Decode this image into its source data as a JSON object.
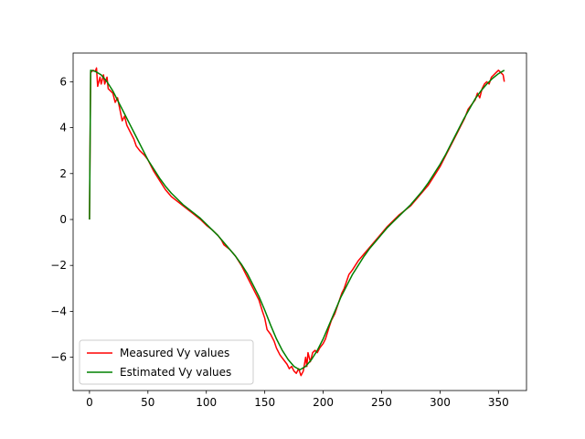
{
  "chart_data": {
    "type": "line",
    "title": "",
    "xlabel": "",
    "ylabel": "",
    "xlim": [
      -14,
      374
    ],
    "ylim": [
      -7.45,
      7.25
    ],
    "xticks": [
      0,
      50,
      100,
      150,
      200,
      250,
      300,
      350
    ],
    "yticks": [
      -6,
      -4,
      -2,
      0,
      2,
      4,
      6
    ],
    "grid": false,
    "legend_position": "lower-left",
    "series": [
      {
        "name": "Measured Vy values",
        "color": "#ff0000",
        "points": [
          [
            0,
            0
          ],
          [
            1,
            6.4
          ],
          [
            3,
            6.5
          ],
          [
            5,
            6.45
          ],
          [
            6,
            6.6
          ],
          [
            7,
            5.8
          ],
          [
            9,
            6.2
          ],
          [
            10,
            5.9
          ],
          [
            12,
            6.3
          ],
          [
            13,
            5.9
          ],
          [
            15,
            6.2
          ],
          [
            16,
            5.7
          ],
          [
            18,
            5.6
          ],
          [
            20,
            5.5
          ],
          [
            22,
            5.1
          ],
          [
            24,
            5.3
          ],
          [
            26,
            4.8
          ],
          [
            28,
            4.3
          ],
          [
            30,
            4.5
          ],
          [
            32,
            4.1
          ],
          [
            35,
            3.8
          ],
          [
            38,
            3.5
          ],
          [
            40,
            3.2
          ],
          [
            43,
            3.0
          ],
          [
            47,
            2.8
          ],
          [
            50,
            2.6
          ],
          [
            55,
            2.1
          ],
          [
            60,
            1.7
          ],
          [
            65,
            1.3
          ],
          [
            70,
            1.0
          ],
          [
            75,
            0.8
          ],
          [
            80,
            0.6
          ],
          [
            85,
            0.4
          ],
          [
            90,
            0.2
          ],
          [
            95,
            0.0
          ],
          [
            100,
            -0.25
          ],
          [
            105,
            -0.45
          ],
          [
            110,
            -0.7
          ],
          [
            113,
            -0.9
          ],
          [
            115,
            -1.1
          ],
          [
            120,
            -1.3
          ],
          [
            125,
            -1.6
          ],
          [
            130,
            -2.0
          ],
          [
            135,
            -2.5
          ],
          [
            140,
            -3.0
          ],
          [
            145,
            -3.5
          ],
          [
            148,
            -4.0
          ],
          [
            150,
            -4.3
          ],
          [
            152,
            -4.8
          ],
          [
            155,
            -5.0
          ],
          [
            158,
            -5.3
          ],
          [
            160,
            -5.6
          ],
          [
            163,
            -5.9
          ],
          [
            166,
            -6.1
          ],
          [
            169,
            -6.3
          ],
          [
            171,
            -6.5
          ],
          [
            173,
            -6.4
          ],
          [
            175,
            -6.6
          ],
          [
            177,
            -6.7
          ],
          [
            179,
            -6.5
          ],
          [
            181,
            -6.8
          ],
          [
            183,
            -6.6
          ],
          [
            185,
            -6.0
          ],
          [
            186,
            -6.4
          ],
          [
            187,
            -5.8
          ],
          [
            189,
            -6.2
          ],
          [
            191,
            -5.8
          ],
          [
            193,
            -5.7
          ],
          [
            195,
            -5.8
          ],
          [
            197,
            -5.6
          ],
          [
            200,
            -5.4
          ],
          [
            202,
            -5.2
          ],
          [
            205,
            -4.7
          ],
          [
            207,
            -4.4
          ],
          [
            210,
            -4.1
          ],
          [
            212,
            -3.8
          ],
          [
            214,
            -3.5
          ],
          [
            216,
            -3.2
          ],
          [
            218,
            -3.0
          ],
          [
            220,
            -2.7
          ],
          [
            222,
            -2.4
          ],
          [
            225,
            -2.2
          ],
          [
            230,
            -1.8
          ],
          [
            235,
            -1.5
          ],
          [
            240,
            -1.2
          ],
          [
            245,
            -0.9
          ],
          [
            250,
            -0.6
          ],
          [
            255,
            -0.3
          ],
          [
            260,
            -0.05
          ],
          [
            265,
            0.2
          ],
          [
            270,
            0.4
          ],
          [
            275,
            0.6
          ],
          [
            280,
            0.9
          ],
          [
            285,
            1.2
          ],
          [
            290,
            1.5
          ],
          [
            295,
            1.9
          ],
          [
            300,
            2.3
          ],
          [
            305,
            2.8
          ],
          [
            310,
            3.3
          ],
          [
            315,
            3.8
          ],
          [
            318,
            4.1
          ],
          [
            321,
            4.4
          ],
          [
            324,
            4.8
          ],
          [
            327,
            5.0
          ],
          [
            330,
            5.2
          ],
          [
            332,
            5.5
          ],
          [
            334,
            5.3
          ],
          [
            336,
            5.7
          ],
          [
            338,
            5.9
          ],
          [
            340,
            6.0
          ],
          [
            342,
            5.9
          ],
          [
            344,
            6.2
          ],
          [
            346,
            6.3
          ],
          [
            348,
            6.4
          ],
          [
            350,
            6.5
          ],
          [
            352,
            6.4
          ],
          [
            354,
            6.3
          ],
          [
            355,
            6.0
          ]
        ]
      },
      {
        "name": "Estimated Vy values",
        "color": "#008000",
        "points": [
          [
            0,
            0
          ],
          [
            1,
            6.5
          ],
          [
            5,
            6.45
          ],
          [
            10,
            6.3
          ],
          [
            15,
            6.0
          ],
          [
            20,
            5.6
          ],
          [
            25,
            5.1
          ],
          [
            30,
            4.6
          ],
          [
            35,
            4.1
          ],
          [
            40,
            3.6
          ],
          [
            45,
            3.1
          ],
          [
            50,
            2.6
          ],
          [
            55,
            2.2
          ],
          [
            60,
            1.8
          ],
          [
            65,
            1.45
          ],
          [
            70,
            1.15
          ],
          [
            75,
            0.9
          ],
          [
            80,
            0.65
          ],
          [
            85,
            0.45
          ],
          [
            90,
            0.25
          ],
          [
            95,
            0.05
          ],
          [
            100,
            -0.2
          ],
          [
            105,
            -0.45
          ],
          [
            110,
            -0.7
          ],
          [
            115,
            -1.0
          ],
          [
            120,
            -1.3
          ],
          [
            125,
            -1.6
          ],
          [
            130,
            -1.95
          ],
          [
            135,
            -2.35
          ],
          [
            140,
            -2.85
          ],
          [
            145,
            -3.35
          ],
          [
            150,
            -3.95
          ],
          [
            155,
            -4.6
          ],
          [
            160,
            -5.2
          ],
          [
            165,
            -5.7
          ],
          [
            170,
            -6.1
          ],
          [
            175,
            -6.4
          ],
          [
            180,
            -6.55
          ],
          [
            185,
            -6.4
          ],
          [
            190,
            -6.1
          ],
          [
            195,
            -5.7
          ],
          [
            200,
            -5.2
          ],
          [
            205,
            -4.6
          ],
          [
            210,
            -4.0
          ],
          [
            215,
            -3.4
          ],
          [
            220,
            -2.9
          ],
          [
            225,
            -2.4
          ],
          [
            230,
            -2.0
          ],
          [
            235,
            -1.6
          ],
          [
            240,
            -1.25
          ],
          [
            245,
            -0.95
          ],
          [
            250,
            -0.65
          ],
          [
            255,
            -0.35
          ],
          [
            260,
            -0.1
          ],
          [
            265,
            0.15
          ],
          [
            270,
            0.4
          ],
          [
            275,
            0.65
          ],
          [
            280,
            0.95
          ],
          [
            285,
            1.25
          ],
          [
            290,
            1.6
          ],
          [
            295,
            2.0
          ],
          [
            300,
            2.4
          ],
          [
            305,
            2.85
          ],
          [
            310,
            3.35
          ],
          [
            315,
            3.85
          ],
          [
            320,
            4.35
          ],
          [
            325,
            4.8
          ],
          [
            330,
            5.25
          ],
          [
            335,
            5.6
          ],
          [
            340,
            5.9
          ],
          [
            345,
            6.15
          ],
          [
            350,
            6.35
          ],
          [
            355,
            6.5
          ]
        ]
      }
    ]
  }
}
